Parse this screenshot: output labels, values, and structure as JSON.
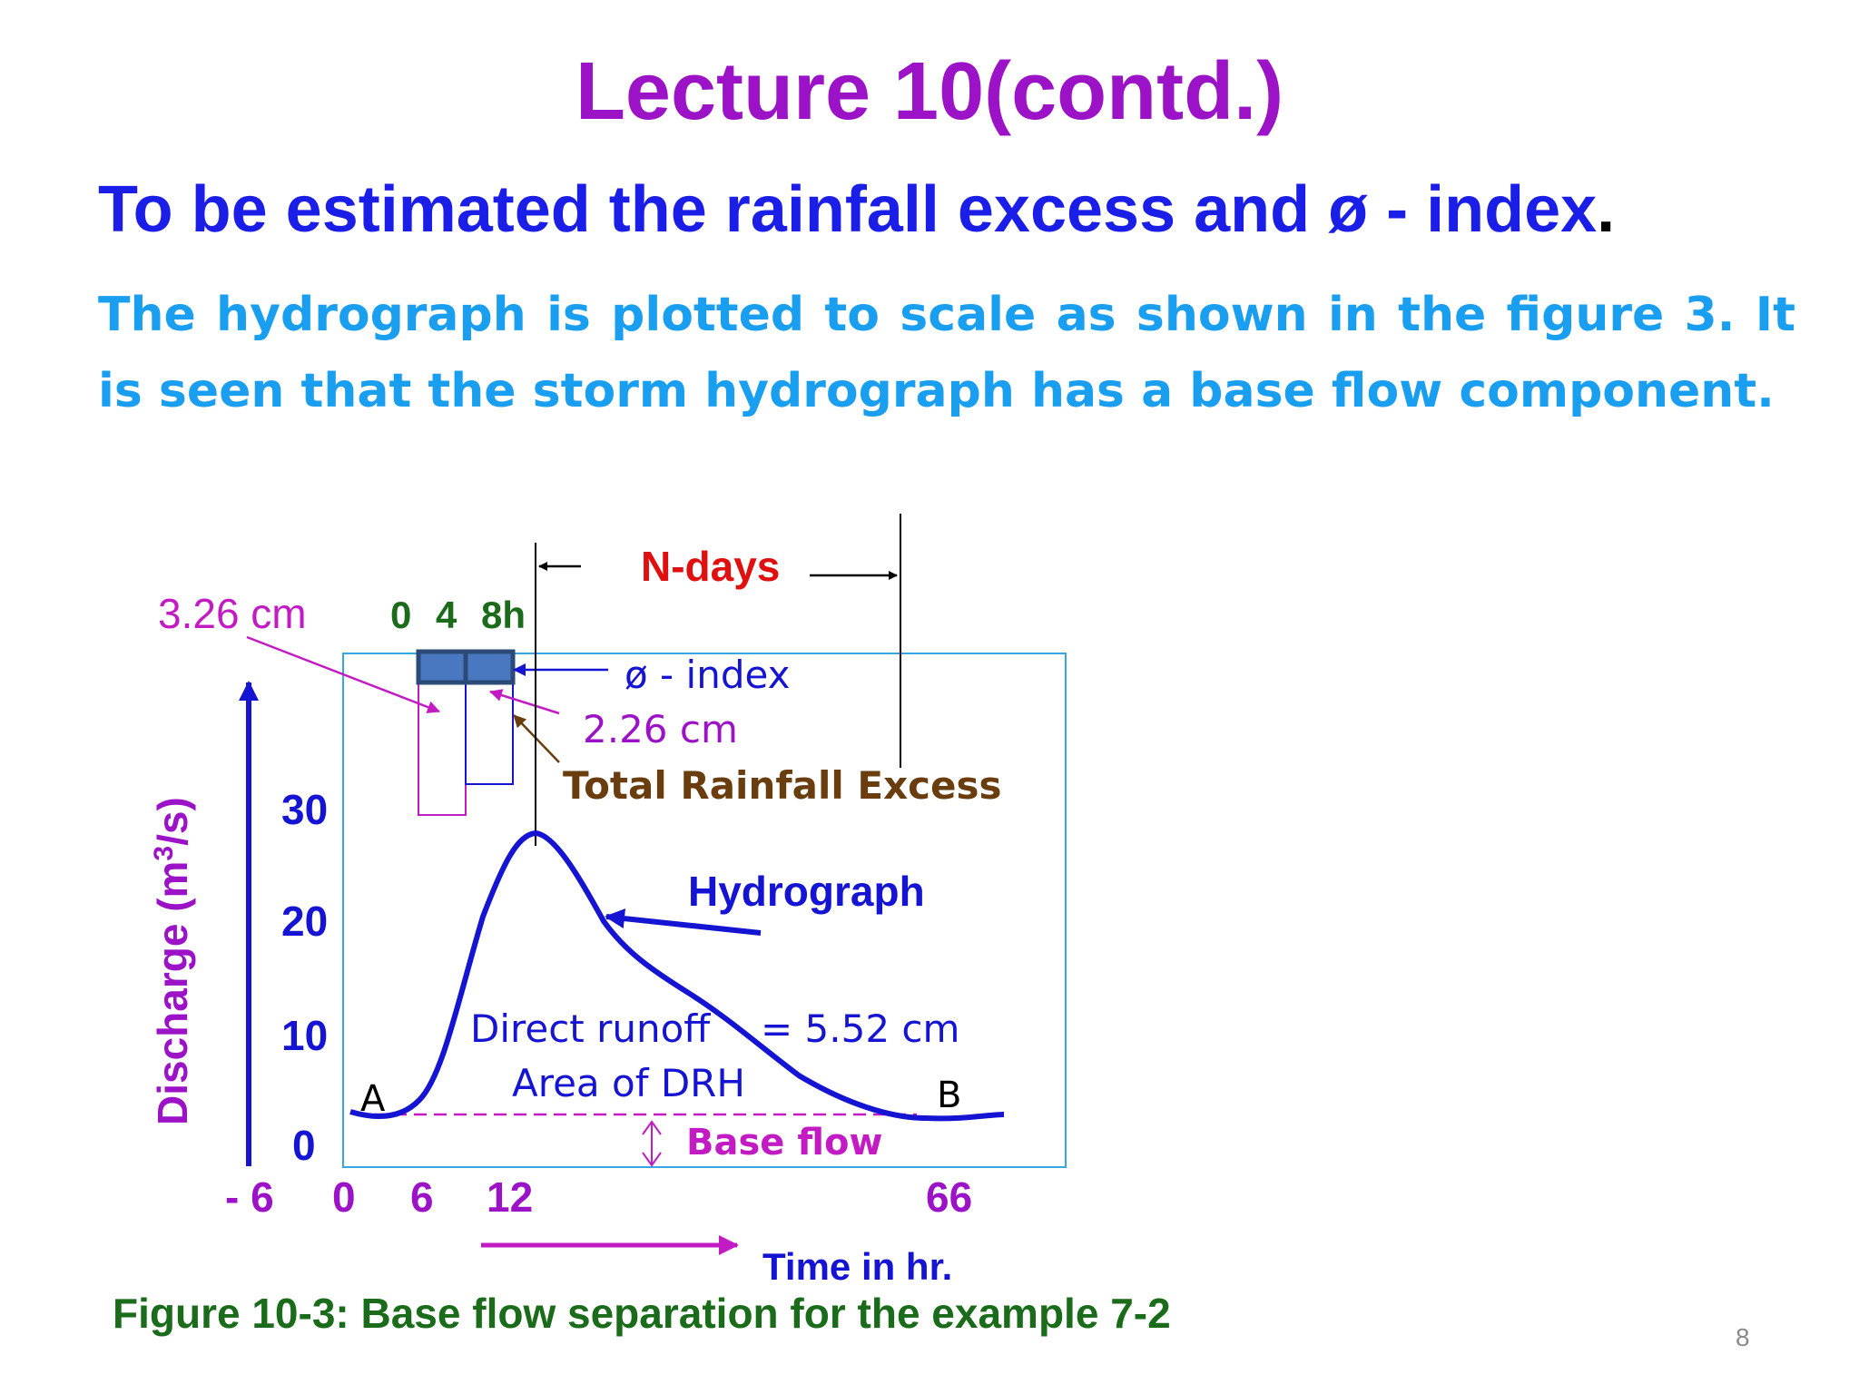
{
  "slide": {
    "title": "Lecture 10(contd.)",
    "subtitle": "To be estimated the rainfall excess and ø - index",
    "subtitle_end": ".",
    "paragraph": "The hydrograph is plotted to scale as shown in the figure 3. It is seen that the storm hydrograph has a base flow component.",
    "caption": "Figure 10-3:   Base flow separation for the example 7-2",
    "page_number": "8"
  },
  "figure": {
    "y_axis_label": "Discharge (m",
    "y_axis_label_sup": "3",
    "y_axis_label_end": "/s)",
    "y_ticks": [
      "30",
      "20",
      "10",
      "0"
    ],
    "x_ticks": [
      "- 6",
      "0",
      "6",
      "12",
      "66"
    ],
    "x_axis_label": "Time in hr.",
    "rain_time_labels": [
      "0",
      "4",
      "8h"
    ],
    "rainfall_label": "3.26 cm",
    "phi_index_label": "ø - index",
    "excess_label": "2.26 cm",
    "total_excess_label": "Total Rainfall Excess",
    "n_days_label": "N-days",
    "hydrograph_label": "Hydrograph",
    "direct_runoff_label": "Direct runoff",
    "direct_runoff_value": "= 5.52 cm",
    "area_label": "Area of DRH",
    "point_a": "A",
    "point_b": "B",
    "base_flow_label": "Base flow"
  },
  "colors": {
    "title": "#9b12c7",
    "subtitle": "#1a1ee6",
    "paragraph": "#1a9ff0",
    "hydrograph": "#1414d2",
    "magenta": "#c21bc4",
    "n_days": "#e01010",
    "brown": "#6a3d0e",
    "green": "#1a6b1a",
    "frame": "#3aa6e0",
    "phi_fill": "#4a78c0"
  }
}
